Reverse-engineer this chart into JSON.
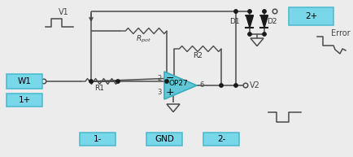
{
  "bg_color": "#ececec",
  "box_facecolor": "#78d7e8",
  "box_edgecolor": "#4ab8cc",
  "wire_color": "#4a4a4a",
  "op_facecolor": "#5ec8d8",
  "op_edgecolor": "#3aabb8",
  "dot_color": "#1a1a1a",
  "diode_color": "#1a1a1a",
  "gnd_arrow_color": "#4a4a4a",
  "labels": {
    "W1": "W1",
    "1plus": "1+",
    "1minus": "1-",
    "2plus": "2+",
    "2minus": "2-",
    "GND": "GND",
    "V1": "V1",
    "V2": "V2",
    "R1": "R1",
    "R2": "R2",
    "Rpot": "$R_{pot}$",
    "D1": "D1",
    "D2": "D2",
    "OP27": "OP27",
    "Error": "Error",
    "minus": "−",
    "plus": "+"
  },
  "figsize": [
    4.35,
    1.93
  ],
  "dpi": 100
}
